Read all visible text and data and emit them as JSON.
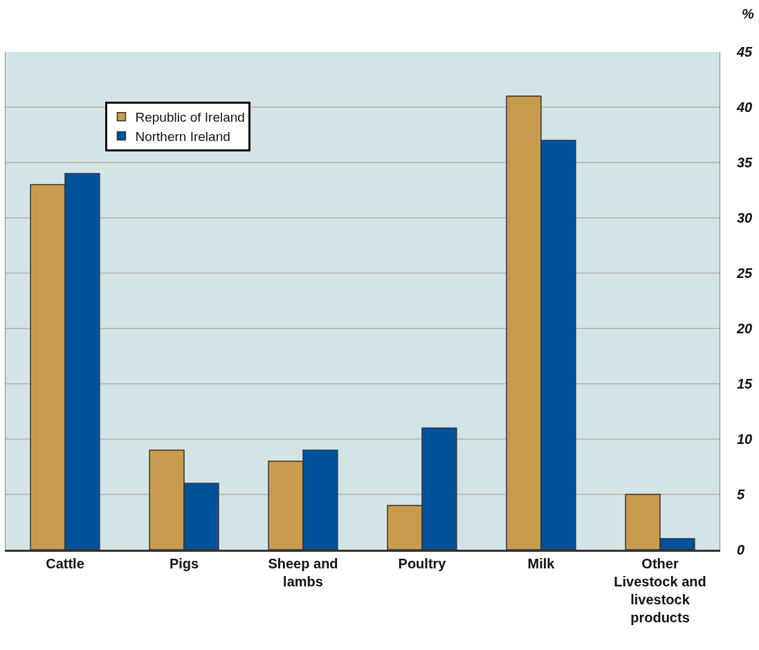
{
  "chart_data": {
    "type": "bar",
    "ylabel": "%",
    "categories": [
      "Cattle",
      "Pigs",
      "Sheep and lambs",
      "Poultry",
      "Milk",
      "Other Livestock and livestock products"
    ],
    "series": [
      {
        "name": "Republic of Ireland",
        "color": "#c89b4e",
        "values": [
          33,
          9,
          8,
          4,
          41,
          5
        ]
      },
      {
        "name": "Northern Ireland",
        "color": "#00529b",
        "values": [
          34,
          6,
          9,
          11,
          37,
          1
        ]
      }
    ],
    "ylim": [
      0,
      45
    ],
    "yticks": [
      0,
      5,
      10,
      15,
      20,
      25,
      30,
      35,
      40,
      45
    ],
    "grid": "y",
    "legend": "top left"
  }
}
